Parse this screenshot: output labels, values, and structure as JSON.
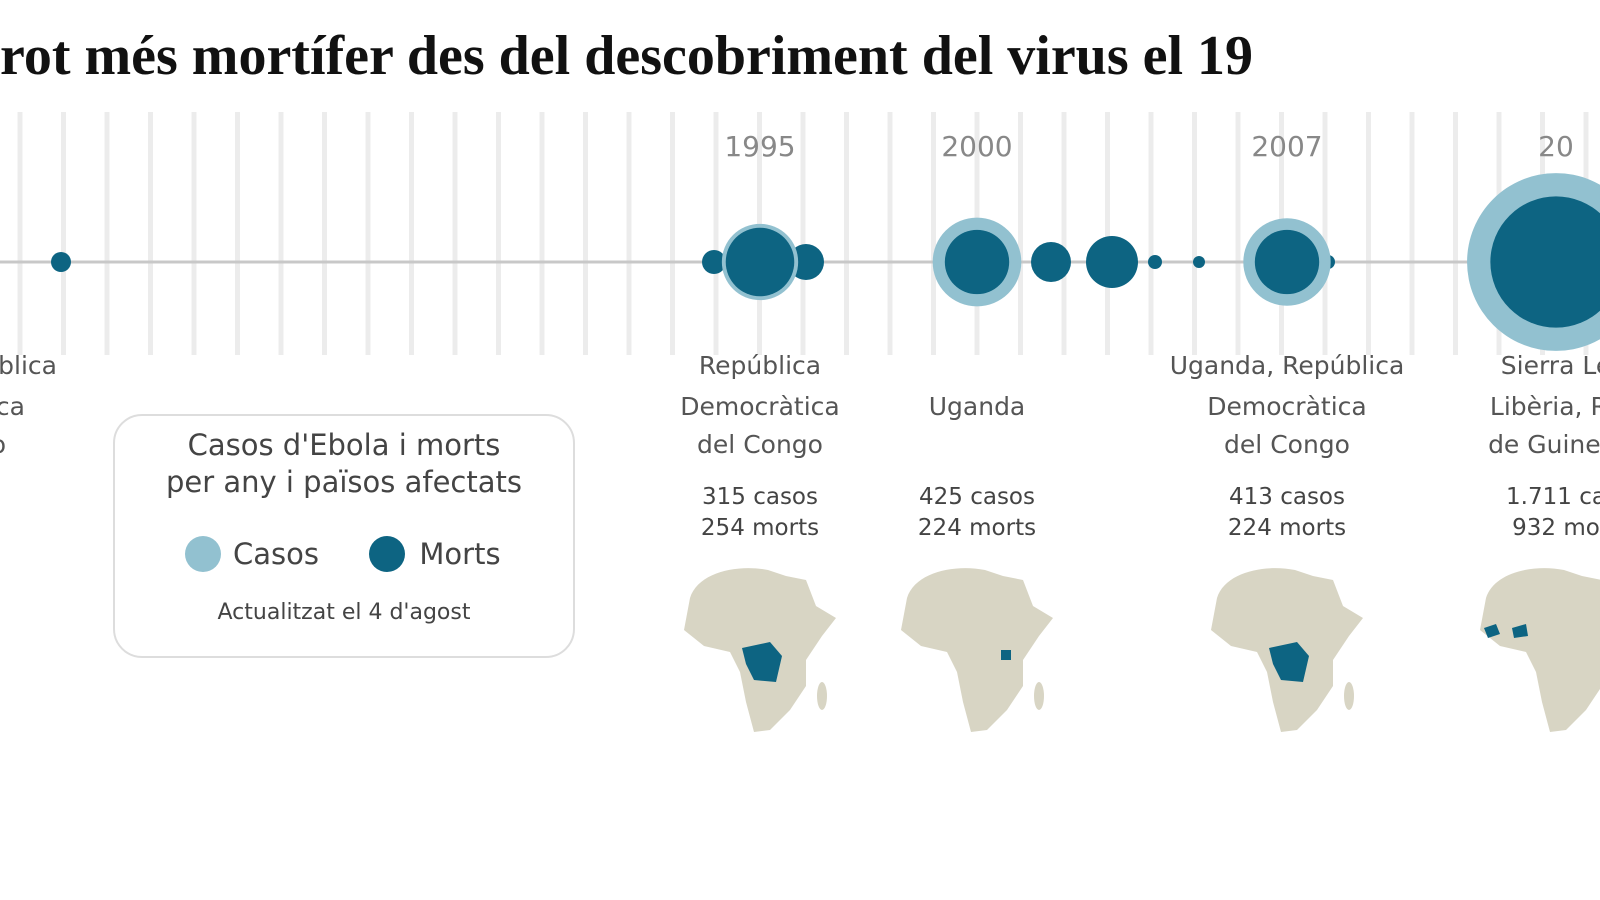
{
  "title": "rot més mortífer des del descobriment del virus el 19",
  "left_fragment": [
    "blica",
    "ca",
    "o"
  ],
  "legend": {
    "title": [
      "Casos d'Ebola i morts",
      "per any i països afectats"
    ],
    "items": [
      {
        "label": "Casos",
        "color": "#92c1d0"
      },
      {
        "label": "Morts",
        "color": "#0d6482"
      }
    ],
    "note": "Actualitzat el 4 d'agost"
  },
  "events": [
    {
      "year": "1995",
      "place": [
        "República",
        "Democràtica",
        "del Congo"
      ],
      "cases": {
        "value": 315,
        "label": "315 casos"
      },
      "deaths": {
        "value": 254,
        "label": "254 morts"
      }
    },
    {
      "year": "2000",
      "place": [
        "Uganda"
      ],
      "cases": {
        "value": 425,
        "label": "425 casos"
      },
      "deaths": {
        "value": 224,
        "label": "224 morts"
      }
    },
    {
      "year": "2007",
      "place": [
        "Uganda, República",
        "Democràtica",
        "del Congo"
      ],
      "cases": {
        "value": 413,
        "label": "413 casos"
      },
      "deaths": {
        "value": 224,
        "label": "224 morts"
      }
    },
    {
      "year": "20",
      "place": [
        "Sierra Le",
        "Libèria, Re",
        "de Guinea,"
      ],
      "cases": {
        "value": 1711,
        "label": "1.711 ca"
      },
      "deaths": {
        "value": 932,
        "label": "932 mo"
      }
    }
  ]
}
